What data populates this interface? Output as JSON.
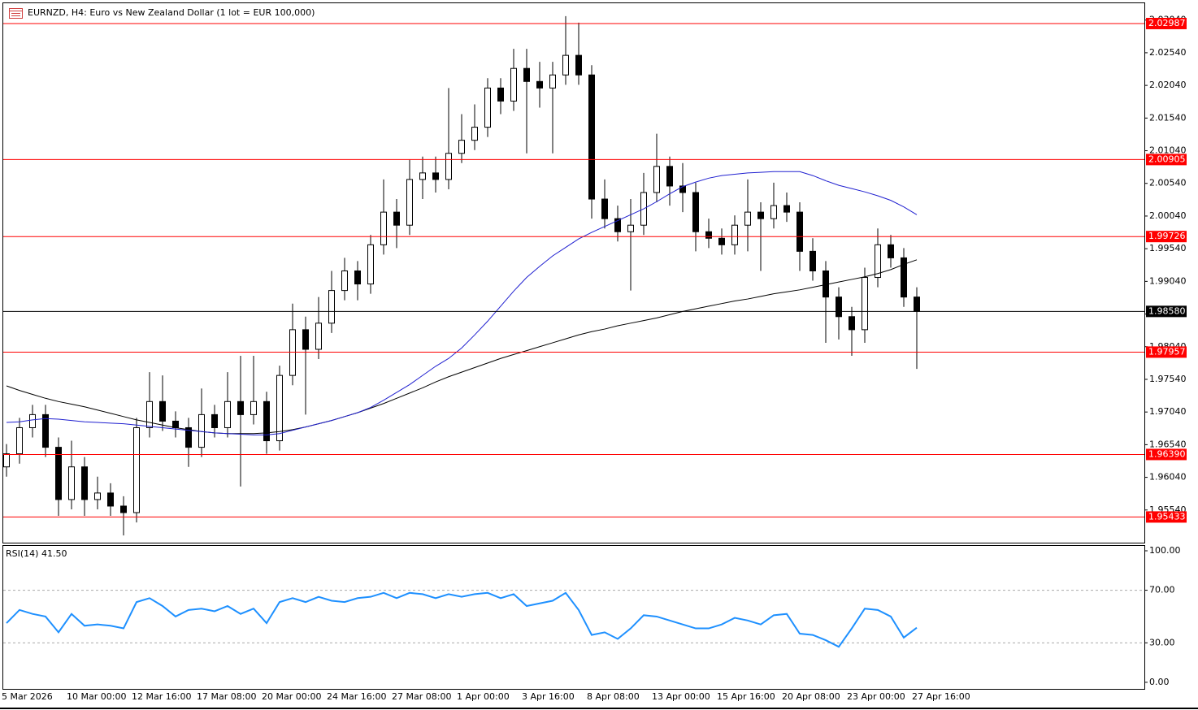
{
  "chart_data": [
    {
      "type": "candlestick",
      "title": "EURNZD, H4:  Euro vs New Zealand Dollar (1 lot = EUR 100,000)",
      "categories": [
        "5 Mar 2026",
        null,
        null,
        null,
        null,
        "10 Mar 00:00",
        null,
        null,
        null,
        null,
        "12 Mar 16:00",
        null,
        null,
        null,
        null,
        "17 Mar 08:00",
        null,
        null,
        null,
        null,
        "20 Mar 00:00",
        null,
        null,
        null,
        null,
        "24 Mar 16:00",
        null,
        null,
        null,
        null,
        "27 Mar 08:00",
        null,
        null,
        null,
        null,
        "1 Apr 00:00",
        null,
        null,
        null,
        null,
        "3 Apr 16:00",
        null,
        null,
        null,
        null,
        "8 Apr 08:00",
        null,
        null,
        null,
        null,
        "13 Apr 00:00",
        null,
        null,
        null,
        null,
        "15 Apr 16:00",
        null,
        null,
        null,
        null,
        "20 Apr 08:00",
        null,
        null,
        null,
        null,
        "23 Apr 00:00",
        null,
        null,
        null,
        null,
        "27 Apr 16:00"
      ],
      "open": [
        1.962,
        1.964,
        1.968,
        1.97,
        1.965,
        1.957,
        1.962,
        1.957,
        1.958,
        1.956,
        1.955,
        1.968,
        1.972,
        1.969,
        1.968,
        1.965,
        1.97,
        1.968,
        1.972,
        1.97,
        1.972,
        1.966,
        1.976,
        1.983,
        1.98,
        1.984,
        1.989,
        1.992,
        1.99,
        1.996,
        2.001,
        1.999,
        2.006,
        2.007,
        2.006,
        2.01,
        2.012,
        2.014,
        2.02,
        2.018,
        2.023,
        2.021,
        2.02,
        2.022,
        2.025,
        2.022,
        2.003,
        2.0,
        1.998,
        1.999,
        2.004,
        2.008,
        2.005,
        2.004,
        1.998,
        1.997,
        1.996,
        1.999,
        2.001,
        2.0,
        2.002,
        2.001,
        1.995,
        1.992,
        1.988,
        1.985,
        1.983,
        1.991,
        1.996,
        1.994,
        1.988
      ],
      "high": [
        1.9655,
        1.9695,
        1.9715,
        1.9715,
        1.9665,
        1.966,
        1.9635,
        1.9605,
        1.9595,
        1.9575,
        1.9695,
        1.9765,
        1.976,
        1.9705,
        1.9695,
        1.974,
        1.9715,
        1.9765,
        1.979,
        1.979,
        1.9735,
        1.9775,
        1.987,
        1.985,
        1.988,
        1.992,
        1.994,
        1.9935,
        1.9975,
        2.006,
        2.003,
        2.009,
        2.0095,
        2.0095,
        2.02,
        2.016,
        2.0175,
        2.0215,
        2.0215,
        2.026,
        2.026,
        2.024,
        2.024,
        2.031,
        2.03,
        2.0235,
        2.006,
        2.002,
        2.003,
        2.007,
        2.013,
        2.0095,
        2.0085,
        2.0055,
        2.0,
        1.9985,
        2.0005,
        2.006,
        2.0025,
        2.0055,
        2.004,
        2.0025,
        1.997,
        1.9935,
        1.9895,
        1.9865,
        1.9925,
        1.9985,
        1.9975,
        1.9955,
        1.9895
      ],
      "low": [
        1.9605,
        1.9625,
        1.9665,
        1.9635,
        1.9545,
        1.9555,
        1.9545,
        1.9555,
        1.9545,
        1.9515,
        1.9535,
        1.9665,
        1.9675,
        1.9665,
        1.962,
        1.9635,
        1.9665,
        1.9665,
        1.959,
        1.9685,
        1.964,
        1.9645,
        1.9745,
        1.97,
        1.9785,
        1.9825,
        1.9875,
        1.9875,
        1.9885,
        1.9945,
        1.9955,
        1.9975,
        2.003,
        2.004,
        2.0045,
        2.0085,
        2.0105,
        2.0125,
        2.016,
        2.0165,
        2.01,
        2.017,
        2.01,
        2.0205,
        2.0205,
        2.0,
        1.9985,
        1.9965,
        1.989,
        1.9975,
        2.0025,
        2.002,
        2.001,
        1.995,
        1.9955,
        1.9945,
        1.9945,
        1.995,
        1.992,
        1.9985,
        1.9995,
        1.992,
        1.9905,
        1.981,
        1.9815,
        1.979,
        1.981,
        1.9895,
        1.9925,
        1.9865,
        1.977
      ],
      "close": [
        1.964,
        1.968,
        1.97,
        1.965,
        1.957,
        1.962,
        1.957,
        1.958,
        1.956,
        1.955,
        1.968,
        1.972,
        1.969,
        1.968,
        1.965,
        1.97,
        1.968,
        1.972,
        1.97,
        1.972,
        1.966,
        1.976,
        1.983,
        1.98,
        1.984,
        1.989,
        1.992,
        1.99,
        1.996,
        2.001,
        1.999,
        2.006,
        2.007,
        2.006,
        2.01,
        2.012,
        2.014,
        2.02,
        2.018,
        2.023,
        2.021,
        2.02,
        2.022,
        2.025,
        2.022,
        2.003,
        2.0,
        1.998,
        1.999,
        2.004,
        2.008,
        2.005,
        2.004,
        1.998,
        1.997,
        1.996,
        1.999,
        2.001,
        2.0,
        2.002,
        2.001,
        1.995,
        1.992,
        1.988,
        1.985,
        1.983,
        1.991,
        1.996,
        1.994,
        1.988,
        1.9858
      ],
      "up_color": "#ffffff",
      "down_color": "#000000",
      "overlays": [
        {
          "color": "#000000",
          "values": [
            1.9744,
            1.9737,
            1.9731,
            1.9725,
            1.972,
            1.9716,
            1.9712,
            1.9707,
            1.9702,
            1.9697,
            1.9692,
            1.9688,
            1.9684,
            1.968,
            1.9677,
            1.9674,
            1.9672,
            1.9671,
            1.9671,
            1.9671,
            1.9672,
            1.9674,
            1.9677,
            1.9681,
            1.9686,
            1.9691,
            1.9697,
            1.9703,
            1.971,
            1.9717,
            1.9725,
            1.9733,
            1.9741,
            1.975,
            1.9758,
            1.9765,
            1.9772,
            1.9779,
            1.9786,
            1.9792,
            1.9798,
            1.9804,
            1.981,
            1.9816,
            1.9822,
            1.9827,
            1.9831,
            1.9836,
            1.984,
            1.9844,
            1.9848,
            1.9853,
            1.9858,
            1.9862,
            1.9866,
            1.987,
            1.9874,
            1.9877,
            1.9881,
            1.9885,
            1.9888,
            1.9891,
            1.9895,
            1.9899,
            1.9903,
            1.9907,
            1.9911,
            1.9916,
            1.9922,
            1.993,
            1.9937
          ]
        },
        {
          "color": "#2020d0",
          "values": [
            1.9688,
            1.9689,
            1.9692,
            1.9694,
            1.9693,
            1.9691,
            1.9689,
            1.9688,
            1.9687,
            1.9686,
            1.9684,
            1.9682,
            1.968,
            1.9678,
            1.9676,
            1.9674,
            1.9672,
            1.9671,
            1.967,
            1.9669,
            1.9669,
            1.9671,
            1.9676,
            1.9681,
            1.9686,
            1.9691,
            1.9697,
            1.9703,
            1.9711,
            1.9722,
            1.9734,
            1.9746,
            1.976,
            1.9774,
            1.9786,
            1.9802,
            1.9822,
            1.9843,
            1.9866,
            1.9889,
            1.991,
            1.9927,
            1.9943,
            1.9956,
            1.9969,
            1.9979,
            1.9988,
            1.9997,
            2.0006,
            2.0015,
            2.0026,
            2.0038,
            2.0049,
            2.0056,
            2.0062,
            2.0066,
            2.0068,
            2.007,
            2.0071,
            2.0072,
            2.0072,
            2.0072,
            2.0066,
            2.0058,
            2.0051,
            2.0046,
            2.0041,
            2.0035,
            2.0028,
            2.0018,
            2.0006
          ]
        }
      ],
      "levels": [
        2.02987,
        2.00905,
        1.99726,
        1.97957,
        {
          "value": 1.9639,
          "label": "1.96390"
        },
        1.95433
      ],
      "level_color": "#ff0000",
      "last_price": {
        "value": 1.9858,
        "label": "1.98580"
      },
      "last_price_color": "#000000",
      "ylim": [
        1.9504,
        2.0331
      ],
      "yticks": [
        {
          "value": 2.0304,
          "label": "2.03040"
        },
        {
          "value": 2.0254,
          "label": "2.02540"
        },
        {
          "value": 2.0204,
          "label": "2.02040"
        },
        {
          "value": 2.0154,
          "label": "2.01540"
        },
        {
          "value": 2.0104,
          "label": "2.01040"
        },
        {
          "value": 2.0054,
          "label": "2.00540"
        },
        {
          "value": 2.0004,
          "label": "2.00040"
        },
        {
          "value": 1.9954,
          "label": "1.99540"
        },
        {
          "value": 1.9904,
          "label": "1.99040"
        },
        {
          "value": 1.9854,
          "label": "1.98540"
        },
        {
          "value": 1.9804,
          "label": "1.98040"
        },
        {
          "value": 1.9754,
          "label": "1.97540"
        },
        {
          "value": 1.9704,
          "label": "1.97040"
        },
        {
          "value": 1.9654,
          "label": "1.96540"
        },
        {
          "value": 1.9604,
          "label": "1.96040"
        },
        {
          "value": 1.9554,
          "label": "1.95540"
        }
      ]
    },
    {
      "type": "line",
      "title": "RSI(14) 41.50",
      "color": "#1e90ff",
      "values": [
        45,
        55,
        52,
        50,
        38,
        52,
        43,
        44,
        43,
        41,
        61,
        64,
        58,
        50,
        55,
        56,
        54,
        58,
        52,
        56,
        45,
        61,
        64,
        61,
        65,
        62,
        61,
        64,
        65,
        68,
        64,
        68,
        67,
        64,
        67,
        65,
        67,
        68,
        64,
        67,
        58,
        60,
        62,
        68,
        55,
        36,
        38,
        33,
        41,
        51,
        50,
        47,
        44,
        41,
        41,
        44,
        49,
        47,
        44,
        51,
        52,
        37,
        36,
        32,
        27,
        41,
        56,
        55,
        50,
        34,
        41.5
      ],
      "levels": [
        70,
        30
      ],
      "ylim": [
        -5,
        103.7
      ],
      "yticks": [
        {
          "value": 100,
          "label": "100.00"
        },
        {
          "value": 70,
          "label": "70.00"
        },
        {
          "value": 30,
          "label": "30.00"
        },
        {
          "value": 0,
          "label": "0.00"
        }
      ]
    }
  ]
}
